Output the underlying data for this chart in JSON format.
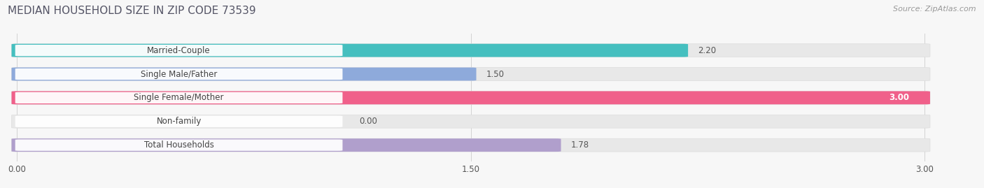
{
  "title": "MEDIAN HOUSEHOLD SIZE IN ZIP CODE 73539",
  "source": "Source: ZipAtlas.com",
  "categories": [
    "Married-Couple",
    "Single Male/Father",
    "Single Female/Mother",
    "Non-family",
    "Total Households"
  ],
  "values": [
    2.2,
    1.5,
    3.0,
    0.0,
    1.78
  ],
  "bar_colors": [
    "#45bfbf",
    "#8eaadb",
    "#f0608a",
    "#f5c89a",
    "#b09fcc"
  ],
  "xlim_min": 0.0,
  "xlim_max": 3.0,
  "xticks": [
    0.0,
    1.5,
    3.0
  ],
  "xtick_labels": [
    "0.00",
    "1.50",
    "3.00"
  ],
  "bar_height": 0.52,
  "bg_color": "#f7f7f7",
  "bar_bg_color": "#e8e8e8",
  "label_box_color": "#ffffff",
  "title_fontsize": 11,
  "label_fontsize": 8.5,
  "value_fontsize": 8.5,
  "source_fontsize": 8,
  "title_color": "#555566",
  "label_color": "#444444",
  "value_color": "#555555",
  "source_color": "#999999"
}
